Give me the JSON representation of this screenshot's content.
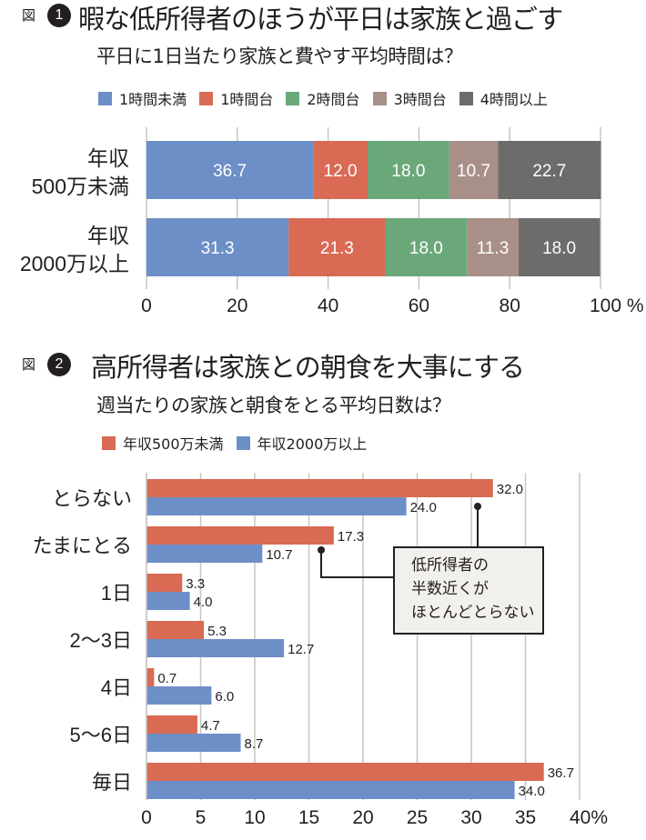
{
  "figure1": {
    "label": "図",
    "number": "1",
    "title": "暇な低所得者のほうが平日は家族と過ごす",
    "subtitle": "平日に1日当たり家族と費やす平均時間は？"
  },
  "figure2": {
    "label": "図",
    "number": "2",
    "title": "高所得者は家族との朝食を大事にする",
    "subtitle": "週当たりの家族と朝食をとる平均日数は？",
    "callout": "低所得者の\n半数近くが\nほとんどとらない"
  },
  "chart_data": [
    {
      "type": "bar",
      "orientation": "horizontal",
      "stacked": true,
      "title": "平日に1日当たり家族と費やす平均時間は？",
      "categories": [
        "年収\n500万未満",
        "年収\n2000万以上"
      ],
      "series": [
        {
          "name": "1時間未満",
          "color": "#6d8fc7",
          "values": [
            36.7,
            31.3
          ]
        },
        {
          "name": "1時間台",
          "color": "#d96a53",
          "values": [
            12.0,
            21.3
          ]
        },
        {
          "name": "2時間台",
          "color": "#6aa87a",
          "values": [
            18.0,
            18.0
          ]
        },
        {
          "name": "3時間台",
          "color": "#a89088",
          "values": [
            10.7,
            11.3
          ]
        },
        {
          "name": "4時間以上",
          "color": "#6e6c6b",
          "values": [
            22.7,
            18.0
          ]
        }
      ],
      "xlim": [
        0,
        100
      ],
      "xticks": [
        "0",
        "20",
        "40",
        "60",
        "80",
        "100 %"
      ],
      "grid": true,
      "legend": "top"
    },
    {
      "type": "bar",
      "orientation": "horizontal",
      "stacked": false,
      "title": "週当たりの家族と朝食をとる平均日数は？",
      "categories": [
        "とらない",
        "たまにとる",
        "1日",
        "2〜3日",
        "4日",
        "5〜6日",
        "毎日"
      ],
      "series": [
        {
          "name": "年収500万未満",
          "color": "#d96a53",
          "values": [
            32.0,
            17.3,
            3.3,
            5.3,
            0.7,
            4.7,
            36.7
          ]
        },
        {
          "name": "年収2000万以上",
          "color": "#6d8fc7",
          "values": [
            24.0,
            10.7,
            4.0,
            12.7,
            6.0,
            8.7,
            34.0
          ]
        }
      ],
      "xlim": [
        0,
        40
      ],
      "xticks": [
        "0",
        "5",
        "10",
        "15",
        "20",
        "25",
        "30",
        "35",
        "40%"
      ],
      "grid": true,
      "legend": "top",
      "annotation": "低所得者の半数近くがほとんどとらない"
    }
  ]
}
